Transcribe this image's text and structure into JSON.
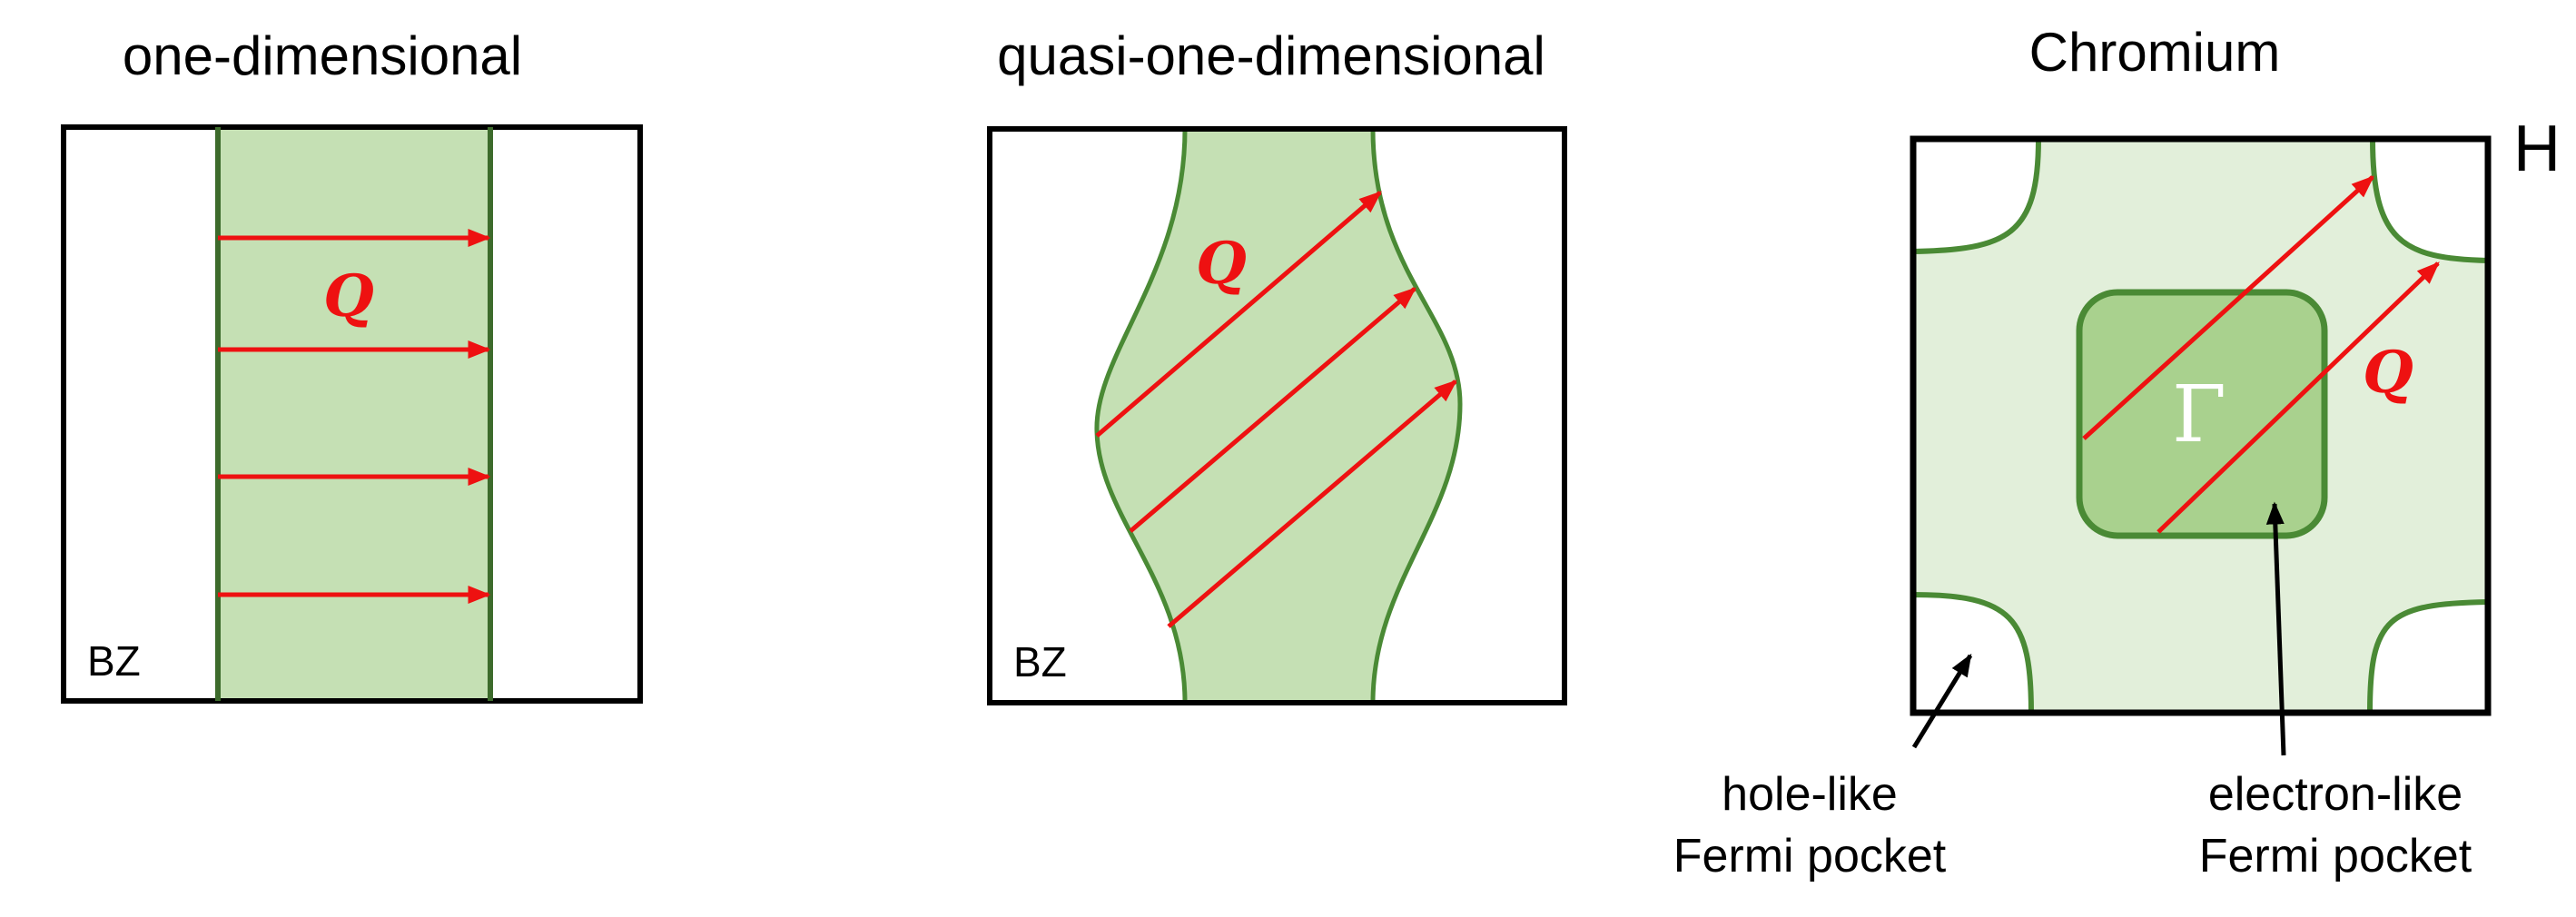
{
  "panels": {
    "one_d": {
      "title": "one-dimensional",
      "bz_label": "BZ",
      "q_label": "Q"
    },
    "quasi_one_d": {
      "title": "quasi-one-dimensional",
      "bz_label": "BZ",
      "q_label": "Q"
    },
    "chromium": {
      "title": "Chromium",
      "corner_label": "H",
      "center_label": "Γ",
      "q_label": "Q",
      "hole_label": [
        "hole-like",
        "Fermi pocket"
      ],
      "electron_label": [
        "electron-like",
        "Fermi pocket"
      ]
    }
  },
  "colors": {
    "outline": "#000000",
    "nesting_arrow": "#ee1111",
    "fermi_surface": "#4a8a35",
    "fermi_surface_dark": "#3d6b2c",
    "filled_band": "#c5e0b4",
    "light_fill": "#e2efda",
    "pocket_fill": "#a9d18e",
    "gamma_text": "#ffffff"
  }
}
